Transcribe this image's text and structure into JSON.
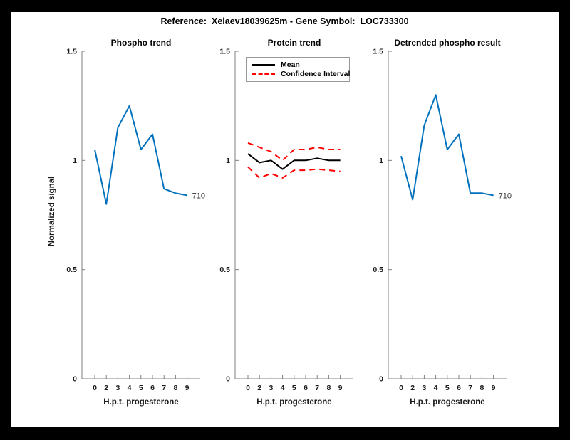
{
  "figure": {
    "title": "Reference:  Xelaev18039625m - Gene Symbol:  LOC733300",
    "background_color": "#000000",
    "canvas_color": "#ffffff"
  },
  "colors": {
    "line_blue": "#0072BD",
    "ci_red": "#FF0000",
    "mean_black": "#000000",
    "axis_gray": "#7f7f7f",
    "text_dark": "#1a1a1a"
  },
  "axes": {
    "ylabel": "Normalized signal",
    "xlabel": "H.p.t. progesterone",
    "y_tick_values": [
      0,
      0.5,
      1,
      1.5
    ],
    "y_tick_labels": [
      "0",
      "0.5",
      "1",
      "1.5"
    ]
  },
  "chart_data": [
    {
      "type": "line",
      "title": "Phospho trend",
      "xlabel": "H.p.t. progesterone",
      "ylabel": "Normalized signal",
      "ylim": [
        0,
        1.5
      ],
      "x": [
        0,
        2,
        3,
        4,
        5,
        6,
        7,
        8,
        9
      ],
      "series": [
        {
          "name": "phospho",
          "color": "#0072BD",
          "style": "solid",
          "values": [
            1.05,
            0.8,
            1.15,
            1.25,
            1.05,
            1.12,
            0.87,
            0.85,
            0.84
          ]
        }
      ],
      "end_label": "710",
      "grid": false
    },
    {
      "type": "line",
      "title": "Protein trend",
      "xlabel": "H.p.t. progesterone",
      "ylim": [
        0,
        1.5
      ],
      "x": [
        0,
        2,
        3,
        4,
        5,
        6,
        7,
        8,
        9
      ],
      "series": [
        {
          "name": "mean",
          "color": "#000000",
          "style": "solid",
          "values": [
            1.03,
            0.99,
            1.0,
            0.96,
            1.0,
            1.0,
            1.01,
            1.0,
            1.0
          ]
        },
        {
          "name": "ci-upper",
          "color": "#FF0000",
          "style": "dashed",
          "values": [
            1.08,
            1.06,
            1.04,
            1.0,
            1.05,
            1.05,
            1.06,
            1.05,
            1.05
          ]
        },
        {
          "name": "ci-lower",
          "color": "#FF0000",
          "style": "dashed",
          "values": [
            0.97,
            0.92,
            0.94,
            0.92,
            0.955,
            0.955,
            0.96,
            0.955,
            0.95
          ]
        }
      ],
      "legend": {
        "position": "top-left",
        "entries": [
          {
            "label": "Mean",
            "color": "#000000",
            "style": "solid"
          },
          {
            "label": "Confidence Interval",
            "color": "#FF0000",
            "style": "dashed"
          }
        ]
      },
      "grid": false
    },
    {
      "type": "line",
      "title": "Detrended phospho result",
      "xlabel": "H.p.t. progesterone",
      "ylim": [
        0,
        1.5
      ],
      "x": [
        0,
        2,
        3,
        4,
        5,
        6,
        7,
        8,
        9
      ],
      "series": [
        {
          "name": "detrended-phospho",
          "color": "#0072BD",
          "style": "solid",
          "values": [
            1.02,
            0.82,
            1.16,
            1.3,
            1.05,
            1.12,
            0.85,
            0.85,
            0.84
          ]
        }
      ],
      "end_label": "710",
      "grid": false
    }
  ]
}
